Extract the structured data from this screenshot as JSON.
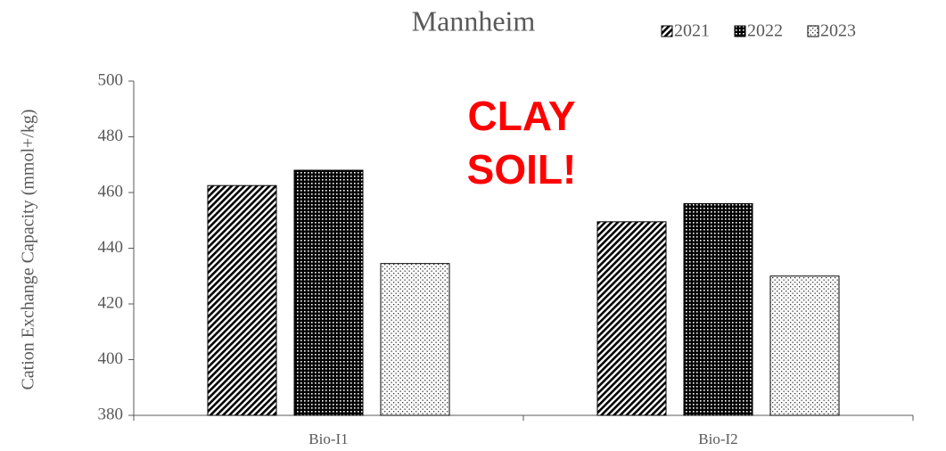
{
  "chart_data": {
    "type": "bar",
    "title": "Mannheim",
    "y_label": "Cation Exchange Capacity (mmol+/kg)",
    "annotation": [
      "CLAY",
      "SOIL!"
    ],
    "annotation_color": "#ff0000",
    "categories": [
      "Bio-I1",
      "Bio-I2"
    ],
    "series": [
      {
        "name": "2021",
        "color": "#000000",
        "pattern": "diagonal",
        "values": [
          462.5,
          449.5
        ]
      },
      {
        "name": "2022",
        "color": "#000000",
        "pattern": "dense-dots",
        "values": [
          468,
          456
        ]
      },
      {
        "name": "2023",
        "color": "#000000",
        "pattern": "sparse-dots",
        "values": [
          434.5,
          430
        ]
      }
    ],
    "ylim": [
      380,
      500
    ],
    "yticks": [
      380,
      400,
      420,
      440,
      460,
      480,
      500
    ],
    "grid": false,
    "legend": "top-right"
  }
}
